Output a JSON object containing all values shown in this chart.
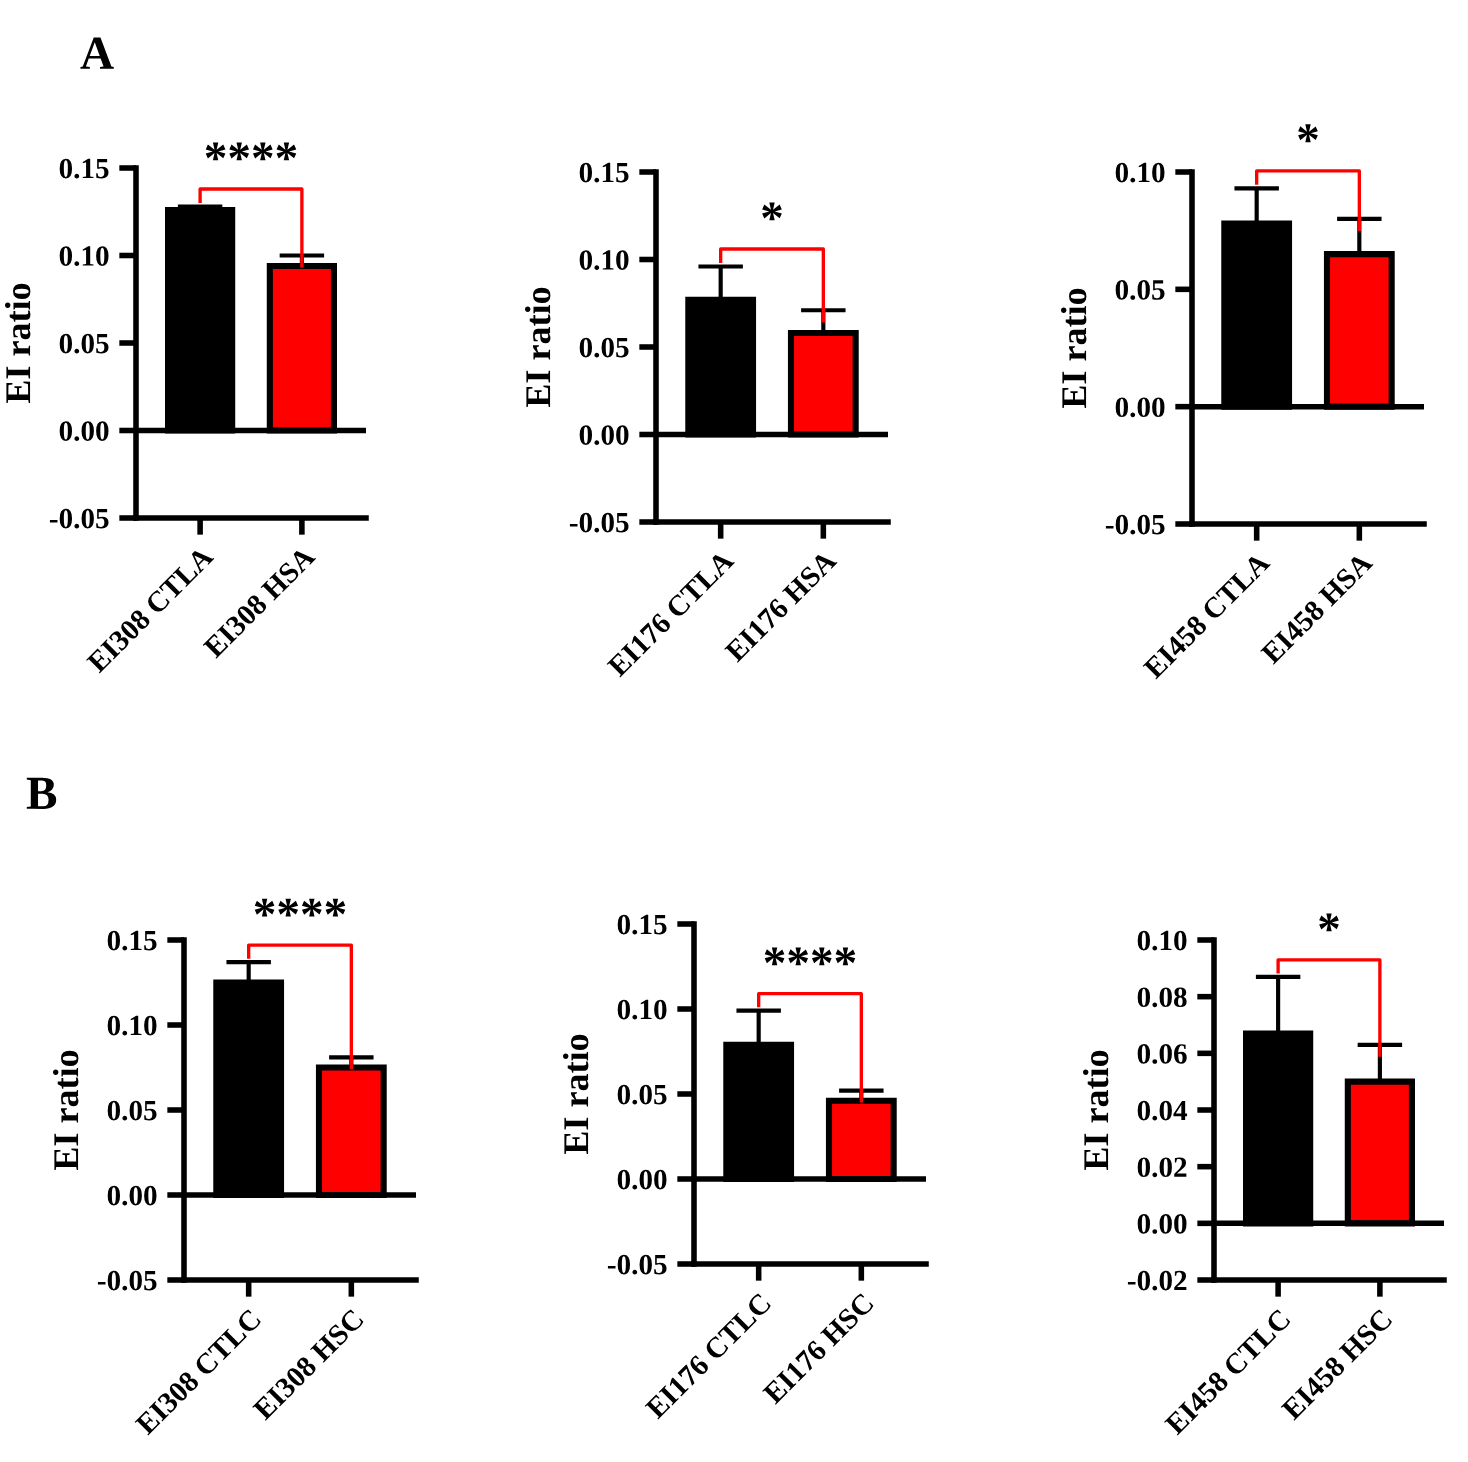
{
  "chart_data": [
    {
      "type": "bar",
      "annotations": [
        "A",
        "****"
      ],
      "categories": [
        "EI308 CTLA",
        "EI308 HSA"
      ],
      "values": [
        0.126,
        0.094
      ],
      "errors": [
        [
          0.126,
          0.128
        ],
        [
          0.094,
          0.1
        ]
      ],
      "colors": [
        "#000000",
        "#ff0000"
      ],
      "ylabel": "EI ratio",
      "ylim": [
        -0.05,
        0.15
      ],
      "yticks": [
        {
          "value": -0.05,
          "label": "-0.05"
        },
        {
          "value": 0,
          "label": "0.00"
        },
        0.05,
        {
          "value": 0.1,
          "label": "0.10"
        },
        0.15
      ],
      "ref_lines": [
        {
          "axis": "y",
          "value": 0,
          "color": "#000000"
        }
      ],
      "grid": false
    },
    {
      "type": "bar",
      "annotations": [
        "*"
      ],
      "categories": [
        "EI176 CTLA",
        "EI176 HSA"
      ],
      "values": [
        0.077,
        0.058
      ],
      "errors": [
        [
          0.077,
          0.096
        ],
        [
          0.058,
          0.071
        ]
      ],
      "colors": [
        "#000000",
        "#ff0000"
      ],
      "ylabel": "EI ratio",
      "ylim": [
        -0.05,
        0.15
      ],
      "yticks": [
        {
          "value": -0.05,
          "label": "-0.05"
        },
        {
          "value": 0,
          "label": "0.00"
        },
        0.05,
        {
          "value": 0.1,
          "label": "0.10"
        },
        0.15
      ],
      "ref_lines": [
        {
          "axis": "y",
          "value": 0,
          "color": "#000000"
        }
      ],
      "grid": false
    },
    {
      "type": "bar",
      "annotations": [
        "*"
      ],
      "categories": [
        "EI458 CTLA",
        "EI458 HSA"
      ],
      "values": [
        0.078,
        0.065
      ],
      "errors": [
        [
          0.078,
          0.093
        ],
        [
          0.065,
          0.08
        ]
      ],
      "colors": [
        "#000000",
        "#ff0000"
      ],
      "ylabel": "EI ratio",
      "ylim": [
        -0.05,
        0.1
      ],
      "yticks": [
        {
          "value": -0.05,
          "label": "-0.05"
        },
        {
          "value": 0,
          "label": "0.00"
        },
        0.05,
        {
          "value": 0.1,
          "label": "0.10"
        }
      ],
      "ref_lines": [
        {
          "axis": "y",
          "value": 0,
          "color": "#000000"
        }
      ],
      "grid": false
    },
    {
      "type": "bar",
      "annotations": [
        "B",
        "****"
      ],
      "categories": [
        "EI308 CTLC",
        "EI308 HSC"
      ],
      "values": [
        0.125,
        0.075
      ],
      "errors": [
        [
          0.125,
          0.137
        ],
        [
          0.075,
          0.081
        ]
      ],
      "colors": [
        "#000000",
        "#ff0000"
      ],
      "ylabel": "EI ratio",
      "ylim": [
        -0.05,
        0.15
      ],
      "yticks": [
        {
          "value": -0.05,
          "label": "-0.05"
        },
        {
          "value": 0,
          "label": "0.00"
        },
        0.05,
        {
          "value": 0.1,
          "label": "0.10"
        },
        0.15
      ],
      "ref_lines": [
        {
          "axis": "y",
          "value": 0,
          "color": "#000000"
        }
      ],
      "grid": false
    },
    {
      "type": "bar",
      "annotations": [
        "****"
      ],
      "categories": [
        "EI176 CTLC",
        "EI176 HSC"
      ],
      "values": [
        0.079,
        0.046
      ],
      "errors": [
        [
          0.079,
          0.099
        ],
        [
          0.046,
          0.052
        ]
      ],
      "colors": [
        "#000000",
        "#ff0000"
      ],
      "ylabel": "EI ratio",
      "ylim": [
        -0.05,
        0.15
      ],
      "yticks": [
        {
          "value": -0.05,
          "label": "-0.05"
        },
        {
          "value": 0,
          "label": "0.00"
        },
        0.05,
        {
          "value": 0.1,
          "label": "0.10"
        },
        0.15
      ],
      "ref_lines": [
        {
          "axis": "y",
          "value": 0,
          "color": "#000000"
        }
      ],
      "grid": false
    },
    {
      "type": "bar",
      "annotations": [
        "*"
      ],
      "categories": [
        "EI458 CTLC",
        "EI458 HSC"
      ],
      "values": [
        0.067,
        0.05
      ],
      "errors": [
        [
          0.067,
          0.087
        ],
        [
          0.05,
          0.063
        ]
      ],
      "colors": [
        "#000000",
        "#ff0000"
      ],
      "ylabel": "EI ratio",
      "ylim": [
        -0.02,
        0.1
      ],
      "yticks": [
        {
          "value": -0.02,
          "label": "-0.02"
        },
        {
          "value": 0,
          "label": "0.00"
        },
        0.02,
        0.04,
        0.06,
        0.08,
        {
          "value": 0.1,
          "label": "0.10"
        }
      ],
      "ref_lines": [
        {
          "axis": "y",
          "value": 0,
          "color": "#000000"
        }
      ],
      "grid": false
    }
  ]
}
